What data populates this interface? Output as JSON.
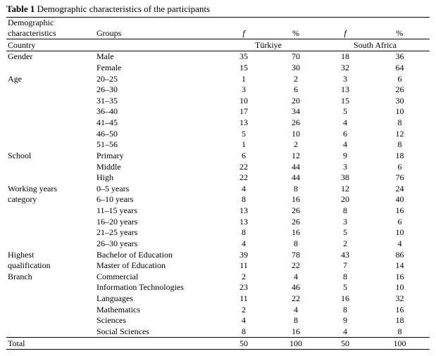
{
  "title": {
    "label": "Table 1",
    "caption": "Demographic characteristics of the participants"
  },
  "table": {
    "header": {
      "col1": "Demographic characteristics",
      "col2": "Groups",
      "f1": "f",
      "p1": "%",
      "f2": "f",
      "p2": "%",
      "country_label": "Country",
      "country1": "Türkiye",
      "country2": "South Africa"
    },
    "rows": [
      {
        "category": "Gender",
        "group": "Male",
        "values": [
          "35",
          "70",
          "18",
          "36"
        ]
      },
      {
        "category": "",
        "group": "Female",
        "values": [
          "15",
          "30",
          "32",
          "64"
        ]
      },
      {
        "category": "Age",
        "group": "20–25",
        "values": [
          "1",
          "2",
          "3",
          "6"
        ]
      },
      {
        "category": "",
        "group": "26–30",
        "values": [
          "3",
          "6",
          "13",
          "26"
        ]
      },
      {
        "category": "",
        "group": "31–35",
        "values": [
          "10",
          "20",
          "15",
          "30"
        ]
      },
      {
        "category": "",
        "group": "36–40",
        "values": [
          "17",
          "34",
          "5",
          "10"
        ]
      },
      {
        "category": "",
        "group": "41–45",
        "values": [
          "13",
          "26",
          "4",
          "8"
        ]
      },
      {
        "category": "",
        "group": "46–50",
        "values": [
          "5",
          "10",
          "6",
          "12"
        ]
      },
      {
        "category": "",
        "group": "51–56",
        "values": [
          "1",
          "2",
          "4",
          "8"
        ]
      },
      {
        "category": "School",
        "group": "Primary",
        "values": [
          "6",
          "12",
          "9",
          "18"
        ]
      },
      {
        "category": "",
        "group": "Middle",
        "values": [
          "22",
          "44",
          "3",
          "6"
        ]
      },
      {
        "category": "",
        "group": "High",
        "values": [
          "22",
          "44",
          "38",
          "76"
        ]
      },
      {
        "category": "Working years",
        "group": "0–5 years",
        "values": [
          "4",
          "8",
          "12",
          "24"
        ]
      },
      {
        "category": "category",
        "group": "6–10 years",
        "values": [
          "8",
          "16",
          "20",
          "40"
        ]
      },
      {
        "category": "",
        "group": "11–15 years",
        "values": [
          "13",
          "26",
          "8",
          "16"
        ]
      },
      {
        "category": "",
        "group": "16–20 years",
        "values": [
          "13",
          "26",
          "3",
          "6"
        ]
      },
      {
        "category": "",
        "group": "21–25 years",
        "values": [
          "8",
          "16",
          "5",
          "10"
        ]
      },
      {
        "category": "",
        "group": "26–30 years",
        "values": [
          "4",
          "8",
          "2",
          "4"
        ]
      },
      {
        "category": "Highest",
        "group": "Bachelor of Education",
        "values": [
          "39",
          "78",
          "43",
          "86"
        ]
      },
      {
        "category": "qualification",
        "group": "Master of Education",
        "values": [
          "11",
          "22",
          "7",
          "14"
        ]
      },
      {
        "category": "Branch",
        "group": "Commercial",
        "values": [
          "2",
          "4",
          "8",
          "16"
        ]
      },
      {
        "category": "",
        "group": "Information Technologies",
        "values": [
          "23",
          "46",
          "5",
          "10"
        ]
      },
      {
        "category": "",
        "group": "Languages",
        "values": [
          "11",
          "22",
          "16",
          "32"
        ]
      },
      {
        "category": "",
        "group": "Mathematics",
        "values": [
          "2",
          "4",
          "8",
          "16"
        ]
      },
      {
        "category": "",
        "group": "Sciences",
        "values": [
          "4",
          "8",
          "9",
          "18"
        ]
      },
      {
        "category": "",
        "group": "Social Sciences",
        "values": [
          "8",
          "16",
          "4",
          "8"
        ]
      }
    ],
    "total": {
      "label": "Total",
      "values": [
        "50",
        "100",
        "50",
        "100"
      ]
    }
  }
}
